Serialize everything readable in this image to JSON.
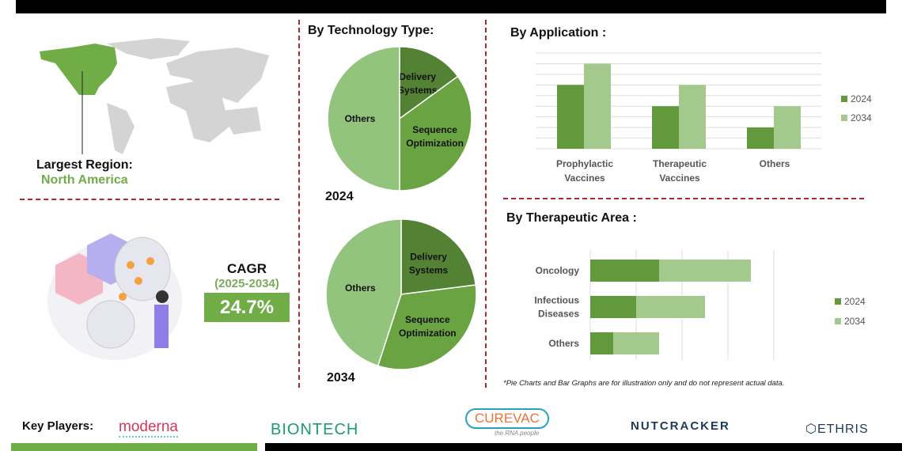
{
  "region": {
    "label": "Largest Region:",
    "value": "North America"
  },
  "cagr": {
    "label": "CAGR",
    "period": "(2025-2034)",
    "value": "24.7%"
  },
  "colors": {
    "dark": "#548235",
    "mid": "#63993d",
    "light": "#a3c98c",
    "accent": "#70ad47",
    "divider": "#b3262b"
  },
  "chart_data": [
    {
      "type": "pie",
      "title": "By Technology Type:",
      "year": "2024",
      "categories": [
        "Delivery Systems",
        "Sequence Optimization",
        "Others"
      ],
      "values": [
        15,
        35,
        50
      ]
    },
    {
      "type": "pie",
      "year": "2034",
      "categories": [
        "Delivery Systems",
        "Sequence Optimization",
        "Others"
      ],
      "values": [
        23,
        32,
        45
      ]
    },
    {
      "type": "bar",
      "title": "By Application :",
      "categories": [
        "Prophylactic Vaccines",
        "Therapeutic Vaccines",
        "Others"
      ],
      "series": [
        {
          "name": "2024",
          "values": [
            6,
            4,
            2
          ]
        },
        {
          "name": "2034",
          "values": [
            8,
            6,
            4
          ]
        }
      ],
      "ylim": [
        0,
        9
      ],
      "grid": true,
      "legend": "right"
    },
    {
      "type": "bar",
      "orientation": "horizontal",
      "stacked": true,
      "title": "By Therapeutic Area :",
      "categories": [
        "Oncology",
        "Infectious Diseases",
        "Others"
      ],
      "series": [
        {
          "name": "2024",
          "values": [
            1.5,
            1,
            0.5
          ]
        },
        {
          "name": "2034",
          "values": [
            2,
            1.5,
            1
          ]
        }
      ],
      "xlim": [
        0,
        4
      ],
      "grid": true,
      "legend": "right"
    }
  ],
  "disclaimer": "*Pie Charts and Bar Graphs are for illustration only and do not represent actual data.",
  "key_players": {
    "label": "Key Players:",
    "companies": [
      "moderna",
      "BIONTECH",
      "CUREVAC",
      "NUTCRACKER",
      "ETHRIS"
    ],
    "curevac_tagline": "the RNA people"
  }
}
